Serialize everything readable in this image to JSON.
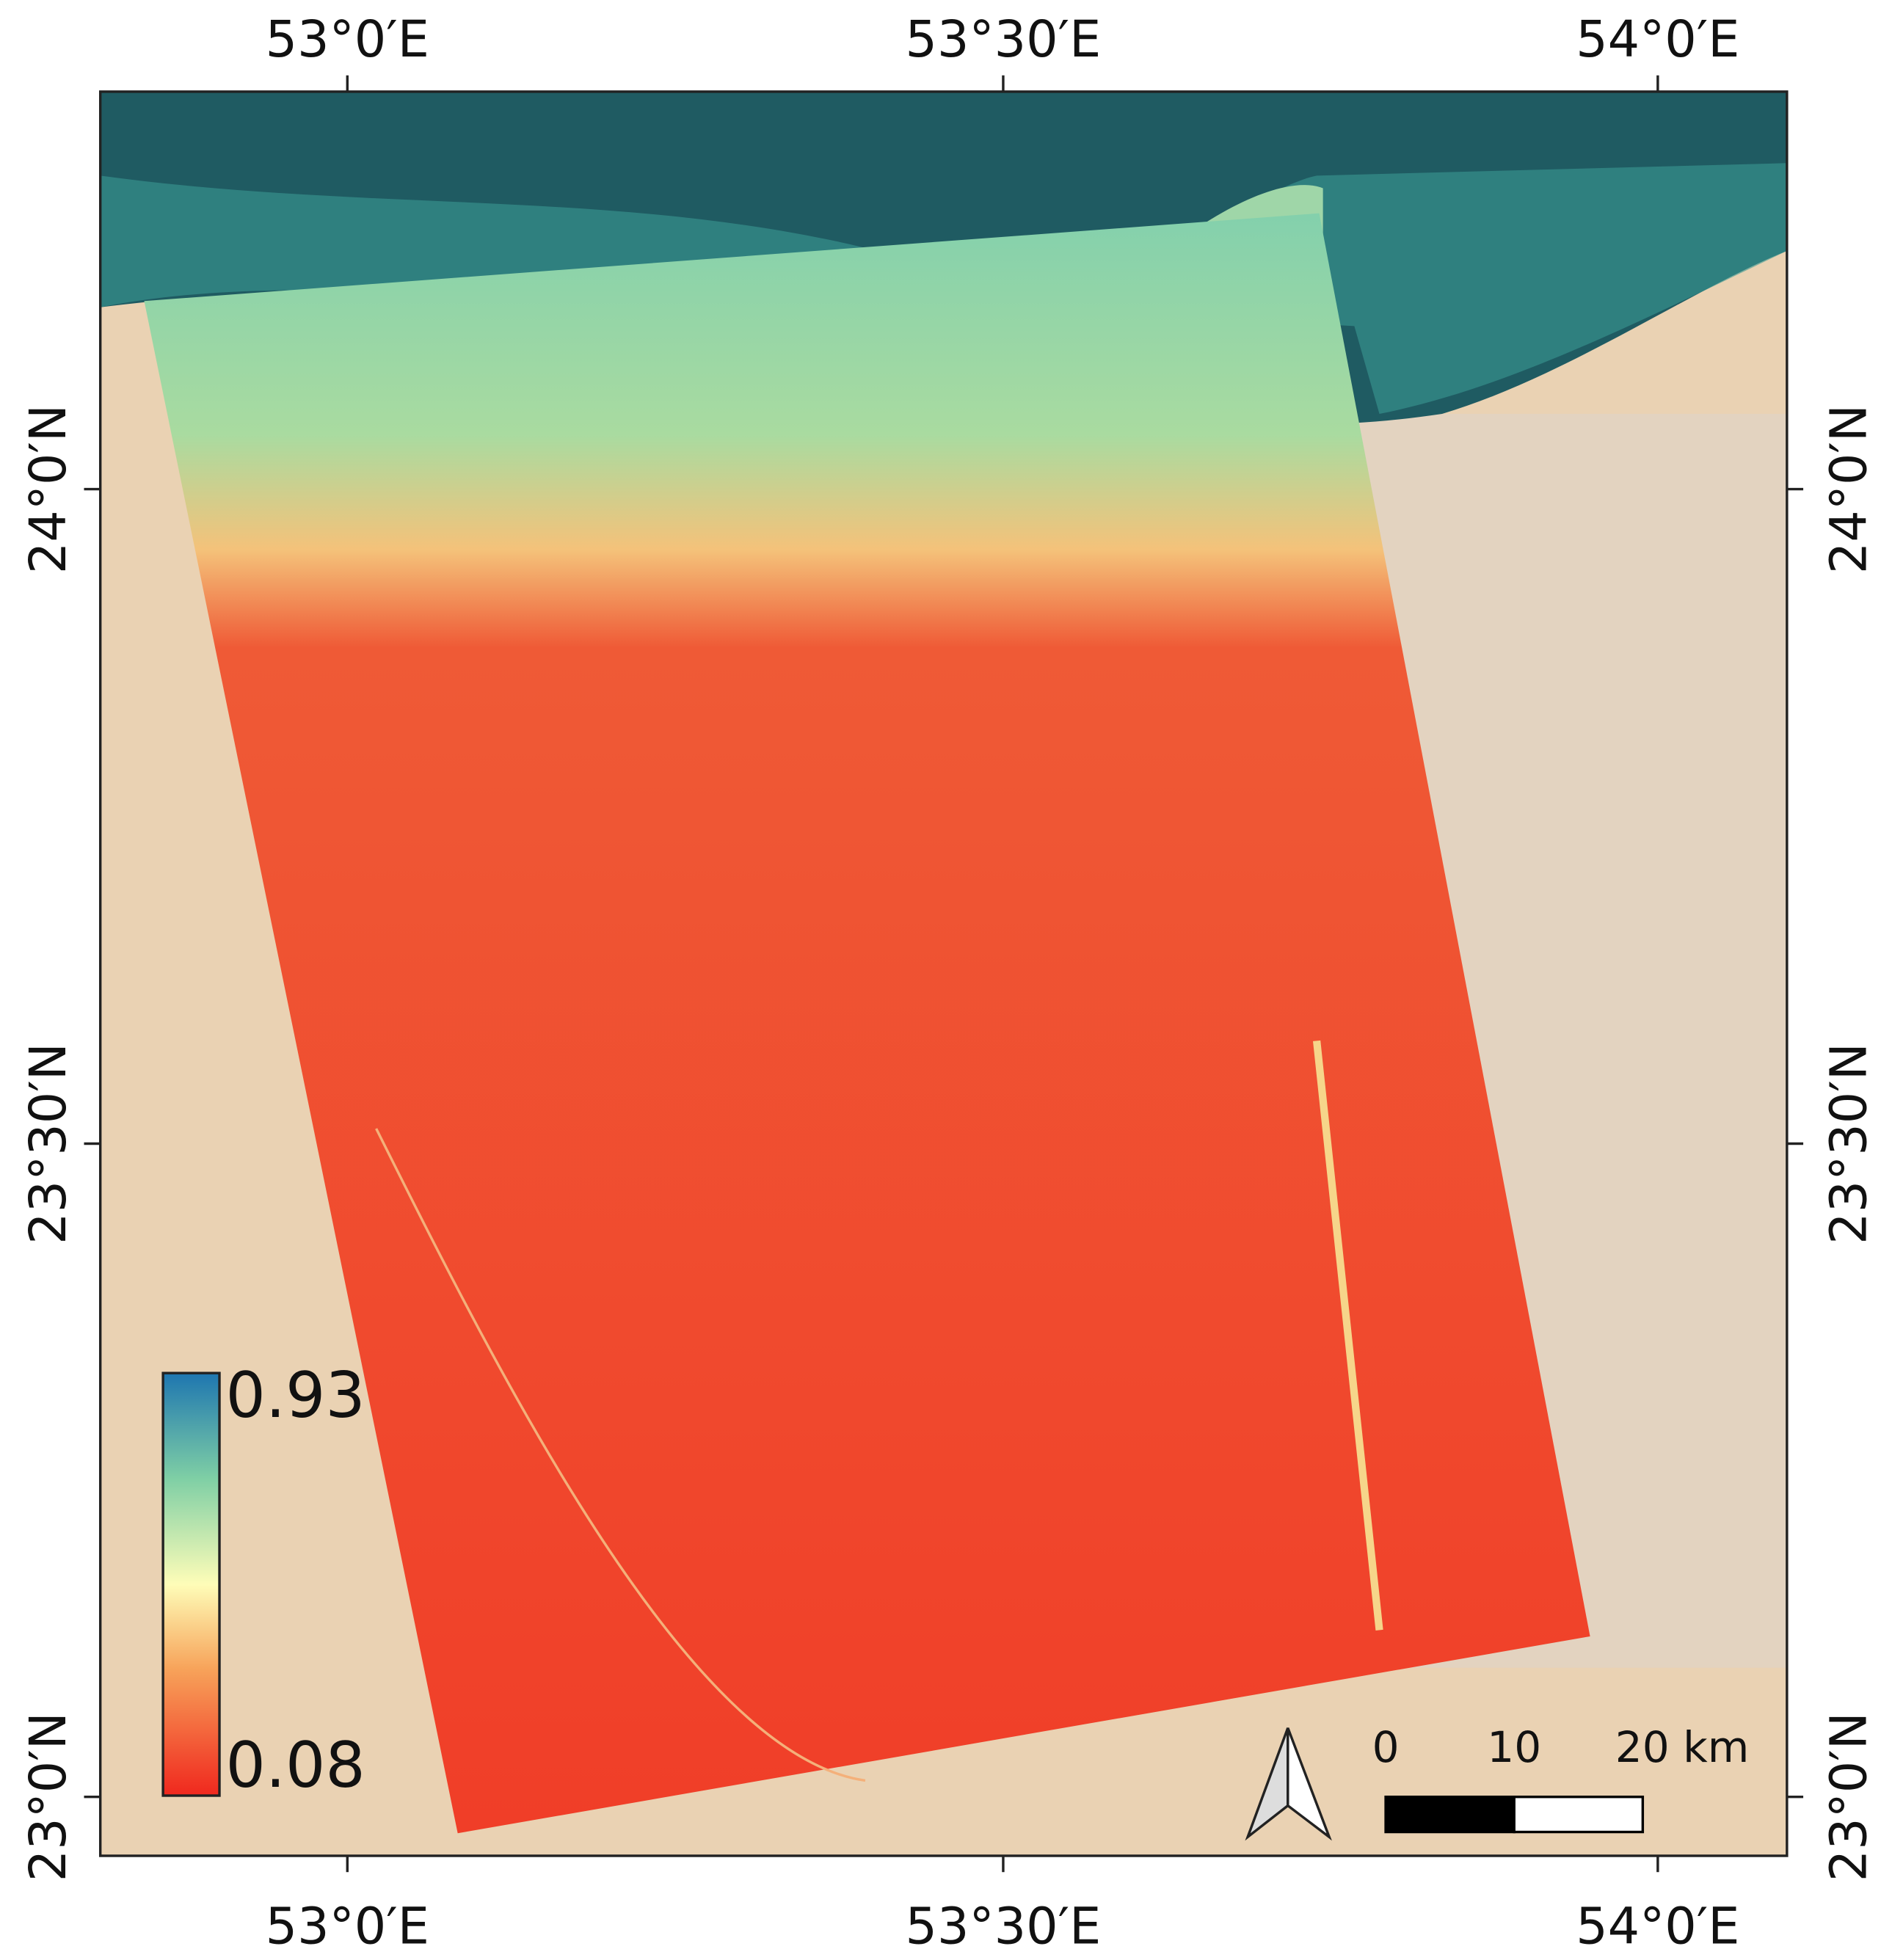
{
  "map": {
    "lon_labels": [
      "53°0′E",
      "53°30′E",
      "54°0′E"
    ],
    "lat_labels": [
      "24°0′N",
      "23°30′N",
      "23°0′N"
    ],
    "colorbar": {
      "max": 0.93,
      "min": 0.08
    },
    "scale_bar": {
      "ticks": [
        0,
        10,
        {
          "value": 20,
          "label": "20 km"
        }
      ]
    }
  }
}
